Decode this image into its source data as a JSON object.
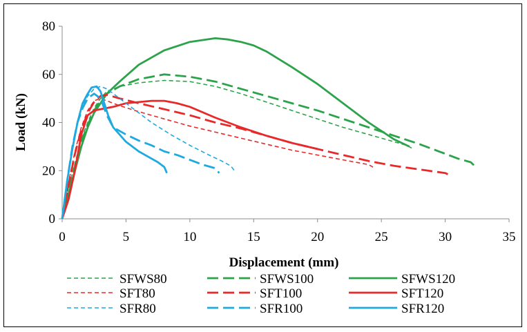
{
  "chart_data": {
    "type": "line",
    "title": "",
    "xlabel": "Displacement (mm)",
    "ylabel": "Load (kN)",
    "xlim": [
      0,
      35
    ],
    "ylim": [
      0,
      80
    ],
    "x_ticks": [
      0,
      5,
      10,
      15,
      20,
      25,
      30,
      35
    ],
    "y_ticks": [
      0,
      20,
      40,
      60,
      80
    ],
    "grid": false,
    "legend_position": "bottom",
    "colors": {
      "green": "#2ca24a",
      "red": "#e8292a",
      "blue": "#1fa9df"
    },
    "series": [
      {
        "name": "SFWS80",
        "color": "#2ca24a",
        "style": "short-dash",
        "x": [
          0,
          0.5,
          1.0,
          1.5,
          2.0,
          2.5,
          3.0,
          3.5,
          4.5,
          6,
          8,
          10,
          12,
          14,
          16,
          18,
          20,
          22,
          24,
          26,
          27,
          27.5
        ],
        "y": [
          0,
          13,
          23,
          33,
          40,
          46,
          50,
          53,
          55,
          56.5,
          57.5,
          57,
          55,
          52,
          48.5,
          45,
          41.5,
          38,
          35,
          32,
          30.5,
          29
        ]
      },
      {
        "name": "SFWS100",
        "color": "#2ca24a",
        "style": "long-dash",
        "x": [
          0,
          0.5,
          1.0,
          1.5,
          2.0,
          2.5,
          3.0,
          3.5,
          4.5,
          6,
          8,
          10,
          12,
          14,
          16,
          18,
          20,
          22,
          24,
          26,
          28,
          30,
          31,
          32,
          32.5
        ],
        "y": [
          0,
          12,
          22,
          32,
          39,
          45,
          49,
          52,
          55,
          58,
          60,
          59,
          57,
          54,
          51,
          48,
          45,
          41.5,
          38,
          34.5,
          31,
          27,
          25,
          23.5,
          21
        ]
      },
      {
        "name": "SFWS120",
        "color": "#2ca24a",
        "style": "solid",
        "x": [
          0,
          0.5,
          1.0,
          1.5,
          2.0,
          2.5,
          3.0,
          3.5,
          4.5,
          6,
          8,
          10,
          12,
          13,
          14,
          15,
          16,
          18,
          20,
          22,
          24,
          26,
          27.2
        ],
        "y": [
          0,
          10,
          20,
          30,
          38,
          44,
          48,
          52,
          57,
          64,
          70,
          73.5,
          75,
          74.5,
          73.5,
          72,
          69.5,
          63,
          56,
          48,
          40,
          33,
          30
        ]
      },
      {
        "name": "SFT80",
        "color": "#e8292a",
        "style": "short-dash",
        "x": [
          0,
          0.5,
          1.0,
          1.5,
          2.0,
          2.5,
          3.0,
          3.5,
          4.5,
          6,
          8,
          10,
          12,
          14,
          16,
          18,
          20,
          22,
          24,
          24.5
        ],
        "y": [
          0,
          15,
          28,
          38,
          45,
          49,
          50,
          49,
          47,
          44.5,
          41.5,
          38.5,
          36,
          33.5,
          31,
          28.5,
          26.5,
          24.5,
          22.5,
          21
        ]
      },
      {
        "name": "SFT100",
        "color": "#e8292a",
        "style": "long-dash",
        "x": [
          0,
          0.5,
          1.0,
          1.5,
          2.0,
          2.5,
          3.0,
          3.5,
          4.5,
          6,
          8,
          10,
          12,
          14,
          16,
          18,
          20,
          22,
          24,
          26,
          28,
          30,
          30.4
        ],
        "y": [
          0,
          14,
          27,
          37,
          44,
          48.5,
          51,
          51.5,
          50,
          48,
          45.5,
          43,
          40,
          37.5,
          34.5,
          31.5,
          29,
          26.5,
          24,
          22,
          20.5,
          19,
          18
        ]
      },
      {
        "name": "SFT120",
        "color": "#e8292a",
        "style": "solid",
        "x": [
          0,
          0.5,
          1.0,
          1.5,
          2.0,
          2.5,
          3.0,
          4.0,
          5.0,
          6,
          7,
          8,
          9,
          10,
          12,
          14,
          16,
          18,
          20
        ],
        "y": [
          0,
          8,
          20,
          35,
          43,
          45,
          45.5,
          46.5,
          48,
          48.5,
          49,
          49,
          48,
          46.5,
          42,
          38,
          34.5,
          31.5,
          29
        ]
      },
      {
        "name": "SFR80",
        "color": "#1fa9df",
        "style": "short-dash",
        "x": [
          0,
          0.4,
          0.8,
          1.2,
          1.6,
          2.0,
          2.5,
          3.0,
          3.5,
          4.5,
          5.5,
          7,
          8.5,
          10,
          11.5,
          12.5,
          13.2,
          13.5
        ],
        "y": [
          0,
          16,
          29,
          40,
          47,
          51,
          54,
          55,
          54,
          50,
          46,
          40,
          35,
          30.5,
          26.5,
          24,
          22,
          20
        ]
      },
      {
        "name": "SFR100",
        "color": "#1fa9df",
        "style": "long-dash",
        "x": [
          0,
          0.4,
          0.8,
          1.2,
          1.6,
          2.0,
          2.5,
          3.0,
          3.5,
          4.0,
          5,
          6,
          7,
          8,
          9,
          10,
          11,
          12,
          12.3
        ],
        "y": [
          0,
          16,
          30,
          40,
          46,
          50,
          52,
          50,
          43,
          38,
          35,
          32.5,
          30.5,
          28,
          26.5,
          24.5,
          22.5,
          21,
          19
        ]
      },
      {
        "name": "SFR120",
        "color": "#1fa9df",
        "style": "solid",
        "x": [
          0,
          0.4,
          0.8,
          1.2,
          1.6,
          2.0,
          2.3,
          2.7,
          3.0,
          3.3,
          3.6,
          4.0,
          5,
          6,
          7,
          7.5,
          8,
          8.2
        ],
        "y": [
          0,
          16,
          29,
          40,
          48,
          52,
          54.5,
          55,
          53,
          48,
          43,
          38,
          32,
          28,
          25,
          23.5,
          21.5,
          19
        ]
      }
    ]
  }
}
